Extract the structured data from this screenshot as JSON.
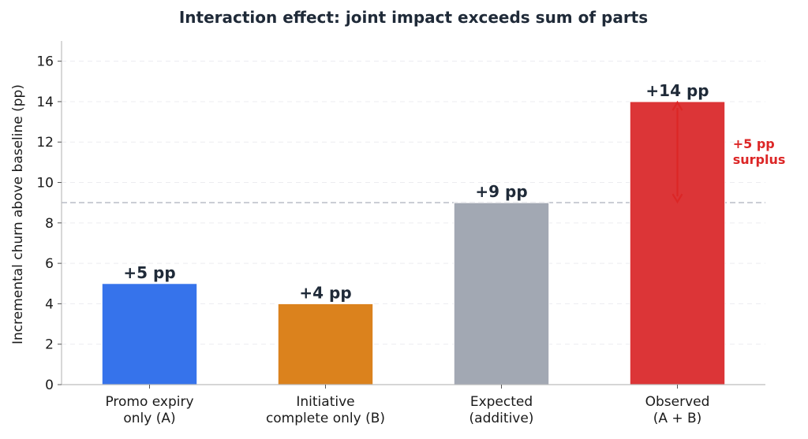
{
  "chart_data": {
    "type": "bar",
    "title": "Interaction effect: joint impact exceeds sum of parts",
    "xlabel": "",
    "ylabel": "Incremental churn above baseline (pp)",
    "ylim": [
      0,
      17
    ],
    "yticks": [
      0,
      2,
      4,
      6,
      8,
      10,
      12,
      14,
      16
    ],
    "grid": true,
    "categories": [
      [
        "Promo expiry",
        "only (A)"
      ],
      [
        "Initiative",
        "complete only (B)"
      ],
      [
        "Expected",
        "(additive)"
      ],
      [
        "Observed",
        "(A + B)"
      ]
    ],
    "values": [
      5,
      4,
      9,
      14
    ],
    "data_labels": [
      "+5 pp",
      "+4 pp",
      "+9 pp",
      "+14 pp"
    ],
    "colors": [
      "#3673eb",
      "#db821d",
      "#a2a8b3",
      "#dc3537"
    ],
    "reference_line": {
      "value": 9,
      "style": "dashed",
      "color": "#b9bcc6"
    },
    "annotation": {
      "lines": [
        "+5 pp",
        "surplus"
      ],
      "from": 9,
      "to": 14,
      "color": "#dc2626"
    }
  }
}
